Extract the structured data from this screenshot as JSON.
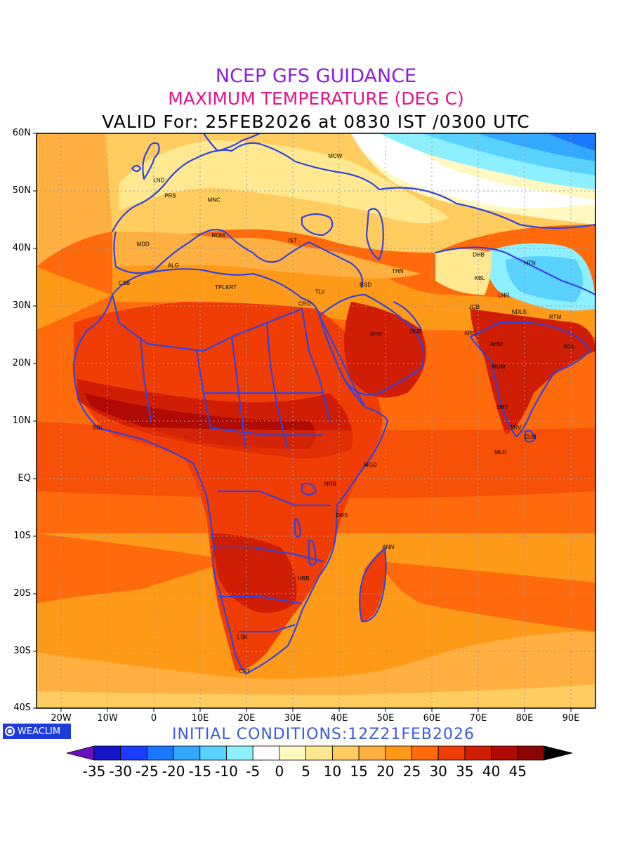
{
  "titles": {
    "line1": "NCEP GFS GUIDANCE",
    "line2": "MAXIMUM TEMPERATURE (DEG C)",
    "line3": "VALID For: 25FEB2026 at 0830 IST /0300 UTC"
  },
  "y_axis_labels": [
    "60N",
    "50N",
    "40N",
    "30N",
    "20N",
    "10N",
    "EQ",
    "10S",
    "20S",
    "30S",
    "40S"
  ],
  "x_axis_labels": [
    "20W",
    "10W",
    "0",
    "10E",
    "20E",
    "30E",
    "40E",
    "50E",
    "60E",
    "70E",
    "80E",
    "90E"
  ],
  "brand": "WEACLIM",
  "initial_conditions": "INITIAL CONDITIONS:12Z21FEB2026",
  "colorbar": {
    "labels": [
      "-35",
      "-30",
      "-25",
      "-20",
      "-15",
      "-10",
      "-5",
      "0",
      "5",
      "10",
      "15",
      "20",
      "25",
      "30",
      "35",
      "40",
      "45"
    ],
    "colors": [
      "#6a0fc0",
      "#1414c8",
      "#1c3cff",
      "#1a78ff",
      "#32a8ff",
      "#5ad2ff",
      "#8ef0ff",
      "#ffffff",
      "#fff8c0",
      "#ffe890",
      "#ffcc60",
      "#ffb040",
      "#ff9a18",
      "#ff6a0a",
      "#f03c05",
      "#d01e05",
      "#b00a05",
      "#8c0505",
      "#000000"
    ]
  },
  "cities": [
    {
      "code": "MCW",
      "lon": 37.6,
      "lat": 55.7
    },
    {
      "code": "LND",
      "lon": -0.1,
      "lat": 51.5
    },
    {
      "code": "PRS",
      "lon": 2.3,
      "lat": 48.8
    },
    {
      "code": "MNC",
      "lon": 11.6,
      "lat": 48.1
    },
    {
      "code": "ROM",
      "lon": 12.5,
      "lat": 41.9
    },
    {
      "code": "MDD",
      "lon": -3.7,
      "lat": 40.4
    },
    {
      "code": "IST",
      "lon": 29.0,
      "lat": 41.0
    },
    {
      "code": "ALG",
      "lon": 3.0,
      "lat": 36.7
    },
    {
      "code": "CSB",
      "lon": -7.6,
      "lat": 33.6
    },
    {
      "code": "TPL",
      "lon": 13.2,
      "lat": 32.9
    },
    {
      "code": "KRT",
      "lon": 15.5,
      "lat": 32.9
    },
    {
      "code": "CRO",
      "lon": 31.2,
      "lat": 30.0
    },
    {
      "code": "TLV",
      "lon": 34.8,
      "lat": 32.1
    },
    {
      "code": "BGD",
      "lon": 44.4,
      "lat": 33.3
    },
    {
      "code": "THN",
      "lon": 51.4,
      "lat": 35.7
    },
    {
      "code": "DHB",
      "lon": 68.8,
      "lat": 38.6
    },
    {
      "code": "HTN",
      "lon": 79.9,
      "lat": 37.1
    },
    {
      "code": "KBL",
      "lon": 69.2,
      "lat": 34.5
    },
    {
      "code": "LHR",
      "lon": 74.3,
      "lat": 31.5
    },
    {
      "code": "JCB",
      "lon": 68.0,
      "lat": 29.5
    },
    {
      "code": "NDLS",
      "lon": 77.2,
      "lat": 28.6
    },
    {
      "code": "RTM",
      "lon": 85.3,
      "lat": 27.7
    },
    {
      "code": "RYH",
      "lon": 46.7,
      "lat": 24.7
    },
    {
      "code": "DUB",
      "lon": 55.3,
      "lat": 25.2
    },
    {
      "code": "KRC",
      "lon": 67.0,
      "lat": 24.9
    },
    {
      "code": "AHM",
      "lon": 72.6,
      "lat": 23.0
    },
    {
      "code": "KOL",
      "lon": 88.4,
      "lat": 22.6
    },
    {
      "code": "MUM",
      "lon": 72.9,
      "lat": 19.1
    },
    {
      "code": "DBT",
      "lon": 74.0,
      "lat": 12.0
    },
    {
      "code": "SRL",
      "lon": -13.2,
      "lat": 8.5
    },
    {
      "code": "TRV",
      "lon": 76.9,
      "lat": 8.5
    },
    {
      "code": "CLM",
      "lon": 79.9,
      "lat": 6.9
    },
    {
      "code": "MLD",
      "lon": 73.5,
      "lat": 4.2
    },
    {
      "code": "MGD",
      "lon": 45.3,
      "lat": 2.0
    },
    {
      "code": "NRB",
      "lon": 36.8,
      "lat": -1.3
    },
    {
      "code": "DRS",
      "lon": 39.3,
      "lat": -6.8
    },
    {
      "code": "ANN",
      "lon": 49.3,
      "lat": -12.3
    },
    {
      "code": "HRR",
      "lon": 31.0,
      "lat": -17.8
    },
    {
      "code": "LSK",
      "lon": 18.0,
      "lat": -28.0
    },
    {
      "code": "CPT",
      "lon": 18.4,
      "lat": -33.9
    }
  ]
}
